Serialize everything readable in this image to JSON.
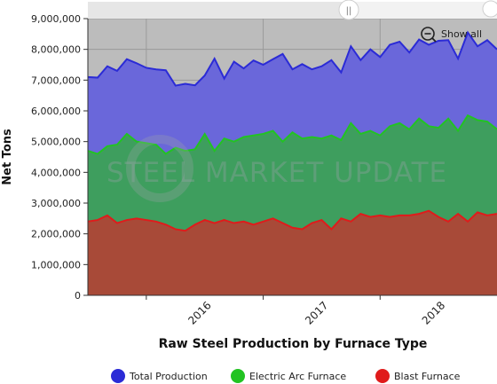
{
  "chart_data": {
    "type": "area",
    "title": "",
    "xlabel": "Raw Steel Production by Furnace Type",
    "ylabel": "Net Tons",
    "ylim": [
      0,
      9000000
    ],
    "yticks": [
      "0",
      "1,000,000",
      "2,000,000",
      "3,000,000",
      "4,000,000",
      "5,000,000",
      "6,000,000",
      "7,000,000",
      "8,000,000",
      "9,000,000"
    ],
    "xticks": [
      "2016",
      "2017",
      "2018"
    ],
    "grid": true,
    "legend_position": "bottom",
    "stacked": false,
    "x_start": "2015-07",
    "x_end": "2018-11",
    "series": [
      {
        "name": "Total Production",
        "color": "#2b2bd6",
        "values": [
          7100000,
          7080000,
          7450000,
          7300000,
          7680000,
          7550000,
          7400000,
          7350000,
          7320000,
          6820000,
          6880000,
          6830000,
          7150000,
          7700000,
          7050000,
          7600000,
          7380000,
          7640000,
          7500000,
          7680000,
          7850000,
          7350000,
          7520000,
          7350000,
          7450000,
          7650000,
          7250000,
          8100000,
          7650000,
          8000000,
          7750000,
          8150000,
          8250000,
          7900000,
          8320000,
          8150000,
          8280000,
          8300000,
          7700000,
          8550000,
          8100000,
          8300000,
          8000000
        ]
      },
      {
        "name": "Electric Arc Furnace",
        "color": "#22c322",
        "values": [
          4700000,
          4600000,
          4850000,
          4900000,
          5250000,
          5000000,
          4950000,
          4900000,
          4600000,
          4800000,
          4700000,
          4750000,
          5250000,
          4700000,
          5100000,
          5000000,
          5150000,
          5200000,
          5250000,
          5350000,
          5000000,
          5300000,
          5100000,
          5150000,
          5100000,
          5200000,
          5050000,
          5600000,
          5250000,
          5350000,
          5200000,
          5500000,
          5600000,
          5400000,
          5750000,
          5500000,
          5450000,
          5750000,
          5350000,
          5850000,
          5700000,
          5650000,
          5400000
        ]
      },
      {
        "name": "Blast Furnace",
        "color": "#e01b1b",
        "values": [
          2400000,
          2450000,
          2600000,
          2350000,
          2450000,
          2500000,
          2450000,
          2400000,
          2300000,
          2150000,
          2100000,
          2300000,
          2450000,
          2350000,
          2450000,
          2350000,
          2400000,
          2300000,
          2400000,
          2500000,
          2350000,
          2200000,
          2150000,
          2350000,
          2450000,
          2150000,
          2500000,
          2400000,
          2650000,
          2550000,
          2600000,
          2550000,
          2600000,
          2600000,
          2650000,
          2750000,
          2550000,
          2400000,
          2650000,
          2400000,
          2700000,
          2600000,
          2650000
        ]
      }
    ]
  },
  "controls": {
    "show_all_label": "Show all",
    "scroll_handle_glyph": "||",
    "zoom_icon": "zoom-out-icon"
  },
  "watermark": {
    "text": "STEEL MARKET UPDATE"
  }
}
